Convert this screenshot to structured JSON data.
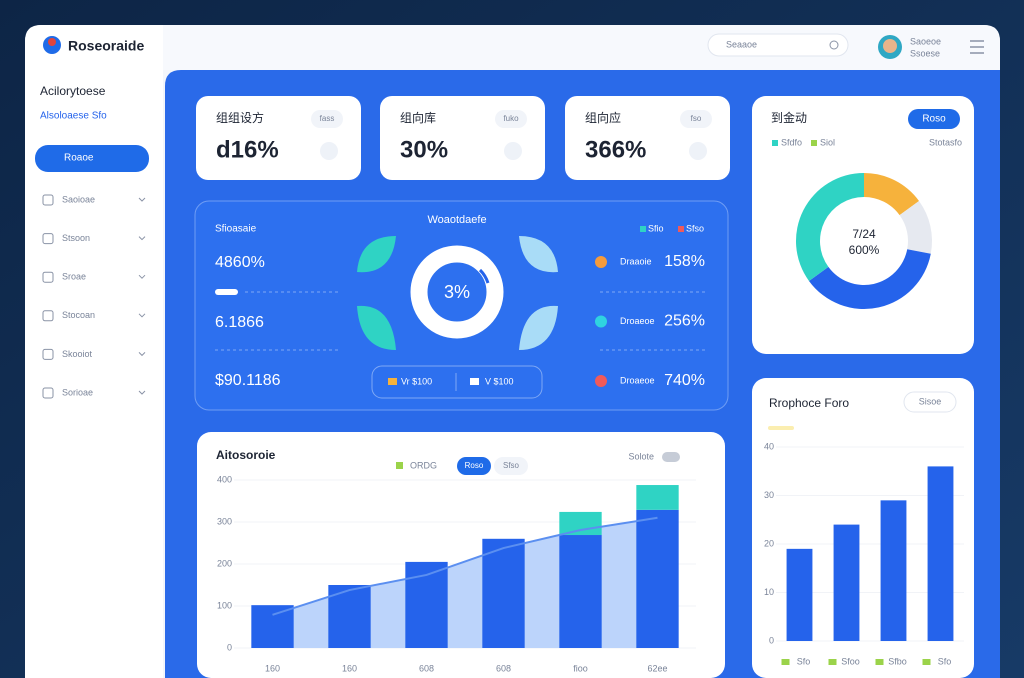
{
  "sidebar": {
    "logo": "Roseoraide",
    "heading": "Acilorytoese",
    "subheading": "Alsoloaese Sfo",
    "nav": [
      "Roaoe",
      "Saoioae",
      "Stsoon",
      "Sroae",
      "Stocoan",
      "Skooiot",
      "Sorioae"
    ]
  },
  "topbar": {
    "search": "Seaaoe",
    "user_name": "Saoeoe",
    "user_role": "Ssoese"
  },
  "kpis": [
    {
      "label": "组组设方",
      "value": "d16%",
      "badge": "fass"
    },
    {
      "label": "组向库",
      "value": "30%",
      "badge": "fuko"
    },
    {
      "label": "组向应",
      "value": "366%",
      "badge": "fso"
    }
  ],
  "overview": {
    "title": "Woaotdaefe",
    "legend": [
      "Sfio",
      "Sfso"
    ],
    "stats_label": "Sfioasaie",
    "stats": [
      "4860%",
      "6.1866",
      "$90.1186"
    ],
    "center": "3%",
    "items": [
      {
        "label": "Draaoie",
        "value": "158%"
      },
      {
        "label": "Droaeoe",
        "value": "256%"
      },
      {
        "label": "Droaeoe",
        "value": "740%"
      }
    ],
    "chips": [
      "Vr $100",
      "V $100"
    ]
  },
  "chart_data": [
    {
      "type": "pie",
      "title": "到金动",
      "button": "Roso",
      "legend": [
        "Sfdfo",
        "Siol"
      ],
      "note": "Stotasfo",
      "center_labels": [
        "7/24",
        "600%"
      ],
      "values": [
        15,
        13,
        37,
        35
      ],
      "colors": [
        "#f6b23c",
        "#e6e9f0",
        "#2563eb",
        "#2fd3c4"
      ]
    },
    {
      "type": "bar",
      "title": "Aitosoroie",
      "toggles": [
        "Roso",
        "Sfso"
      ],
      "note": "Solote",
      "categories": [
        "160",
        "160",
        "608",
        "608",
        "fioo",
        "62ee"
      ],
      "series": [
        {
          "name": "ORDG",
          "color": "#2563eb",
          "values": [
            102,
            150,
            205,
            260,
            269,
            329
          ]
        },
        {
          "color": "#2fd3c4",
          "values": [
            0,
            0,
            0,
            0,
            55,
            59
          ]
        }
      ],
      "line": {
        "color": "#5b8ff0",
        "fill": "#bcd4fb",
        "values": [
          79,
          138,
          174,
          238,
          281,
          310
        ]
      },
      "ylim": [
        0,
        400
      ],
      "yticks": [
        0,
        100,
        200,
        300,
        400
      ]
    },
    {
      "type": "bar",
      "title": "Rrophoce Foro",
      "button": "Sisoe",
      "categories": [
        "Sfo",
        "Sfoo",
        "Sfbo",
        "Sfo"
      ],
      "values": [
        19,
        24,
        29,
        36
      ],
      "color": "#2563eb",
      "ylim": [
        0,
        40
      ],
      "yticks": [
        0,
        10,
        20,
        30,
        40
      ]
    }
  ]
}
